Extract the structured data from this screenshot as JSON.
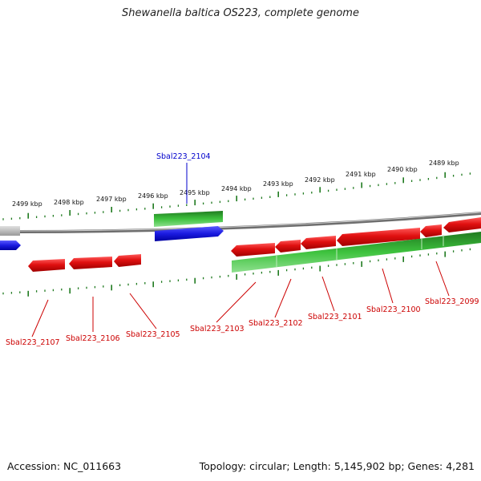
{
  "title": "Shewanella baltica OS223, complete genome",
  "footer": {
    "accession": "Accession: NC_011663",
    "summary": "Topology: circular; Length: 5,145,902 bp; Genes: 4,281"
  },
  "colors": {
    "backbone": "#8a8a8a",
    "ticks": "#1f7a1f",
    "red_gene": "#e01010",
    "red_label": "#cc0000",
    "green_gene": "#2fb52f",
    "blue_gene": "#1a1ae0",
    "grey_gene": "#b0b0b0",
    "blue_label": "#0000cc"
  },
  "scale_labels": [
    "2499 kbp",
    "2498 kbp",
    "2497 kbp",
    "2496 kbp",
    "2495 kbp",
    "2494 kbp",
    "2493 kbp",
    "2492 kbp",
    "2491 kbp",
    "2490 kbp",
    "2489 kbp"
  ],
  "top_gene_label": "Sbal223_2104",
  "bottom_gene_labels": [
    "Sbal223_2107",
    "Sbal223_2106",
    "Sbal223_2105",
    "Sbal223_2103",
    "Sbal223_2102",
    "Sbal223_2101",
    "Sbal223_2100",
    "Sbal223_2099"
  ]
}
